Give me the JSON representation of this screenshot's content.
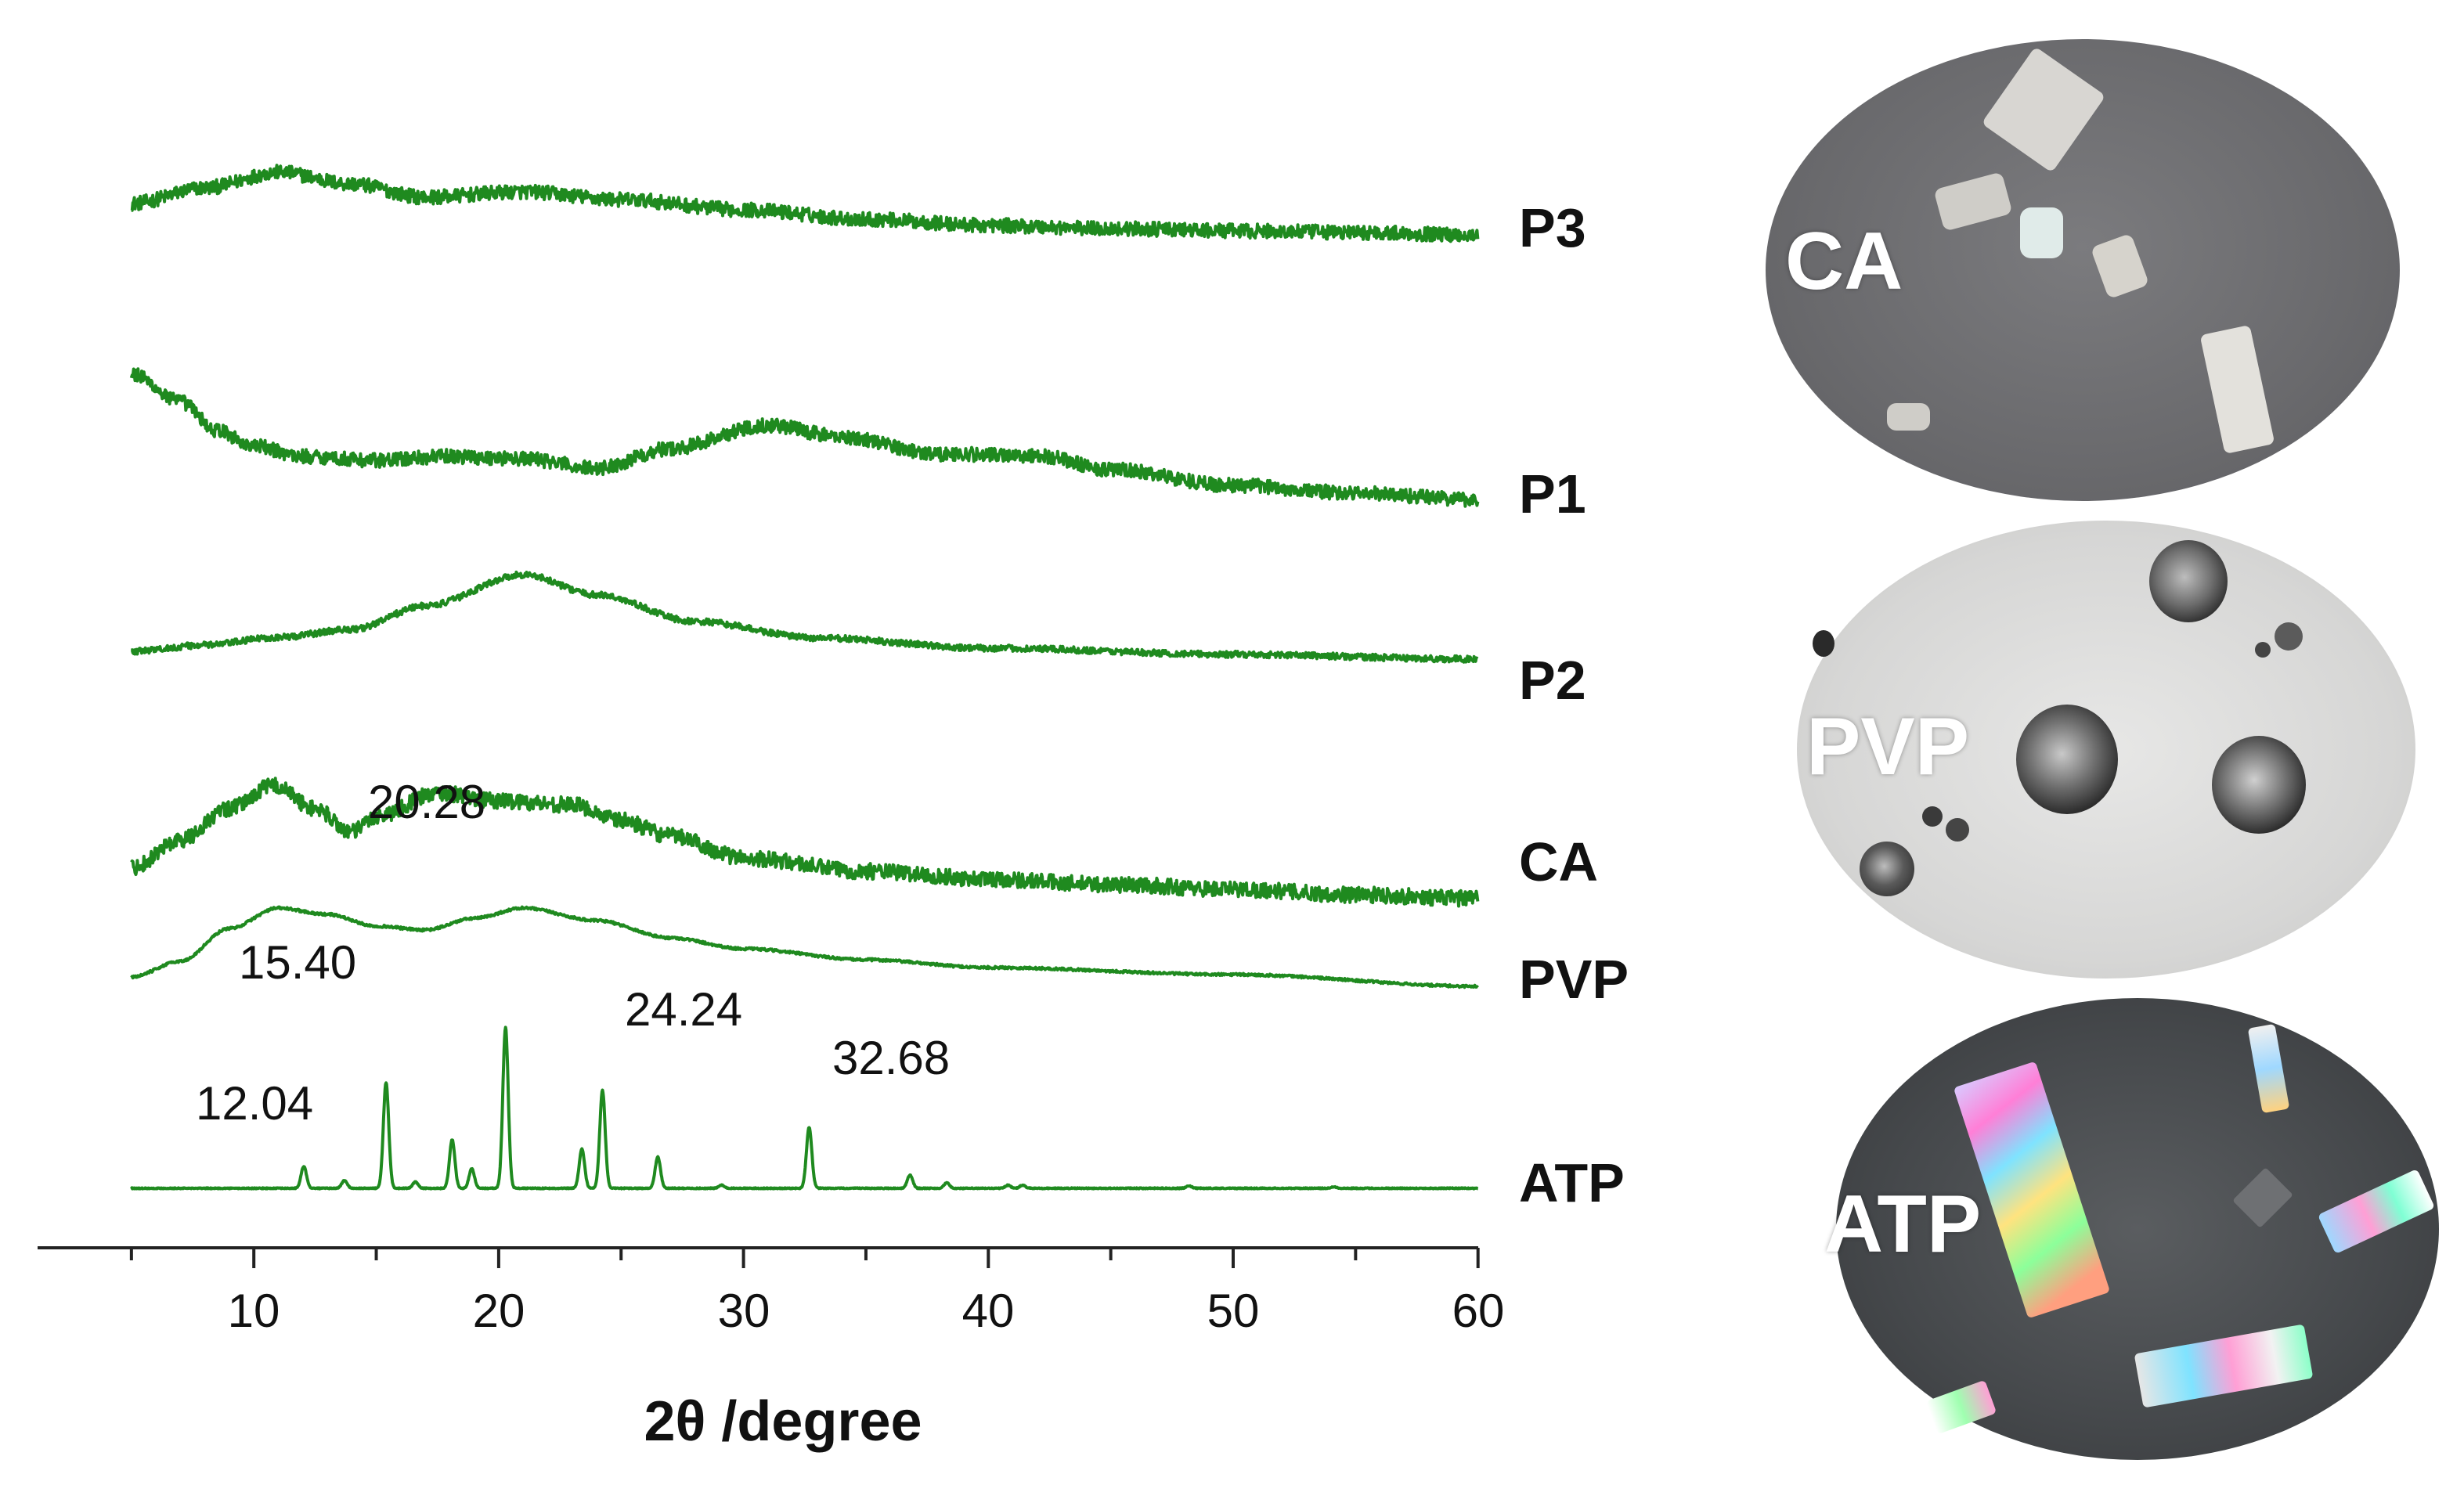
{
  "chart_data": {
    "type": "line",
    "title": "",
    "xlabel": "2θ /degree",
    "ylabel": "",
    "xlim": [
      0,
      60
    ],
    "x_ticks": [
      10,
      20,
      30,
      40,
      50,
      60
    ],
    "grid": false,
    "series": [
      {
        "name": "P3",
        "profile": [
          [
            5,
            0.4
          ],
          [
            8,
            0.6
          ],
          [
            11,
            0.8
          ],
          [
            14,
            0.65
          ],
          [
            17,
            0.48
          ],
          [
            21,
            0.55
          ],
          [
            25,
            0.45
          ],
          [
            30,
            0.32
          ],
          [
            35,
            0.2
          ],
          [
            40,
            0.12
          ],
          [
            45,
            0.08
          ],
          [
            50,
            0.05
          ],
          [
            55,
            0.03
          ],
          [
            60,
            0.0
          ]
        ],
        "noise": 0.09
      },
      {
        "name": "P1",
        "profile": [
          [
            5,
            1.6
          ],
          [
            7,
            1.25
          ],
          [
            8.5,
            0.88
          ],
          [
            10,
            0.68
          ],
          [
            12,
            0.55
          ],
          [
            15,
            0.5
          ],
          [
            18,
            0.55
          ],
          [
            21,
            0.52
          ],
          [
            24,
            0.4
          ],
          [
            27,
            0.65
          ],
          [
            31,
            0.95
          ],
          [
            34,
            0.8
          ],
          [
            38,
            0.58
          ],
          [
            42,
            0.56
          ],
          [
            45,
            0.38
          ],
          [
            50,
            0.18
          ],
          [
            55,
            0.08
          ],
          [
            60,
            0.0
          ]
        ],
        "noise": 0.09
      },
      {
        "name": "P2",
        "profile": [
          [
            5,
            0.1
          ],
          [
            8,
            0.18
          ],
          [
            11,
            0.28
          ],
          [
            14,
            0.38
          ],
          [
            17,
            0.68
          ],
          [
            21,
            1.08
          ],
          [
            24,
            0.82
          ],
          [
            28,
            0.48
          ],
          [
            33,
            0.27
          ],
          [
            40,
            0.14
          ],
          [
            50,
            0.06
          ],
          [
            60,
            0.0
          ]
        ],
        "noise": 0.04
      },
      {
        "name": "CA",
        "profile": [
          [
            5,
            0.0
          ],
          [
            7,
            0.35
          ],
          [
            9,
            0.75
          ],
          [
            10.8,
            1.05
          ],
          [
            12.5,
            0.75
          ],
          [
            14,
            0.45
          ],
          [
            15,
            0.65
          ],
          [
            17.5,
            0.95
          ],
          [
            20,
            0.85
          ],
          [
            23,
            0.8
          ],
          [
            25,
            0.6
          ],
          [
            27,
            0.4
          ],
          [
            30,
            0.12
          ],
          [
            35,
            -0.05
          ],
          [
            40,
            -0.15
          ],
          [
            45,
            -0.22
          ],
          [
            50,
            -0.28
          ],
          [
            55,
            -0.35
          ],
          [
            60,
            -0.4
          ]
        ],
        "noise": 0.1
      },
      {
        "name": "PVP",
        "profile": [
          [
            5,
            0.0
          ],
          [
            7,
            0.2
          ],
          [
            9,
            0.62
          ],
          [
            11,
            0.88
          ],
          [
            13,
            0.8
          ],
          [
            15,
            0.65
          ],
          [
            17,
            0.6
          ],
          [
            19,
            0.75
          ],
          [
            21,
            0.88
          ],
          [
            24,
            0.72
          ],
          [
            27,
            0.5
          ],
          [
            30,
            0.36
          ],
          [
            35,
            0.22
          ],
          [
            40,
            0.12
          ],
          [
            50,
            0.03
          ],
          [
            60,
            -0.12
          ]
        ],
        "noise": 0.015
      },
      {
        "name": "ATP",
        "profile": [
          [
            5,
            0.0
          ],
          [
            60,
            0.0
          ]
        ],
        "noise": 0.006,
        "peaks": [
          [
            12.04,
            0.28
          ],
          [
            13.7,
            0.1
          ],
          [
            15.4,
            1.35
          ],
          [
            16.6,
            0.08
          ],
          [
            18.1,
            0.62
          ],
          [
            18.9,
            0.25
          ],
          [
            20.28,
            2.05
          ],
          [
            23.4,
            0.5
          ],
          [
            24.24,
            1.25
          ],
          [
            26.5,
            0.4
          ],
          [
            29.1,
            0.04
          ],
          [
            32.68,
            0.78
          ],
          [
            36.8,
            0.17
          ],
          [
            38.3,
            0.07
          ],
          [
            40.8,
            0.04
          ],
          [
            41.4,
            0.04
          ],
          [
            48.2,
            0.03
          ],
          [
            54.1,
            0.02
          ]
        ]
      }
    ],
    "trace_labels": [
      "P3",
      "P1",
      "P2",
      "CA",
      "PVP",
      "ATP"
    ],
    "peak_labels": [
      {
        "text": "12.04",
        "x": 12.04
      },
      {
        "text": "15.40",
        "x": 15.4
      },
      {
        "text": "20.28",
        "x": 20.28
      },
      {
        "text": "24.24",
        "x": 24.24
      },
      {
        "text": "32.68",
        "x": 32.68
      }
    ]
  },
  "colors": {
    "trace": "#1f8a1f",
    "text": "#111111"
  },
  "micrographs": [
    {
      "label": "CA"
    },
    {
      "label": "PVP"
    },
    {
      "label": "ATP"
    }
  ]
}
